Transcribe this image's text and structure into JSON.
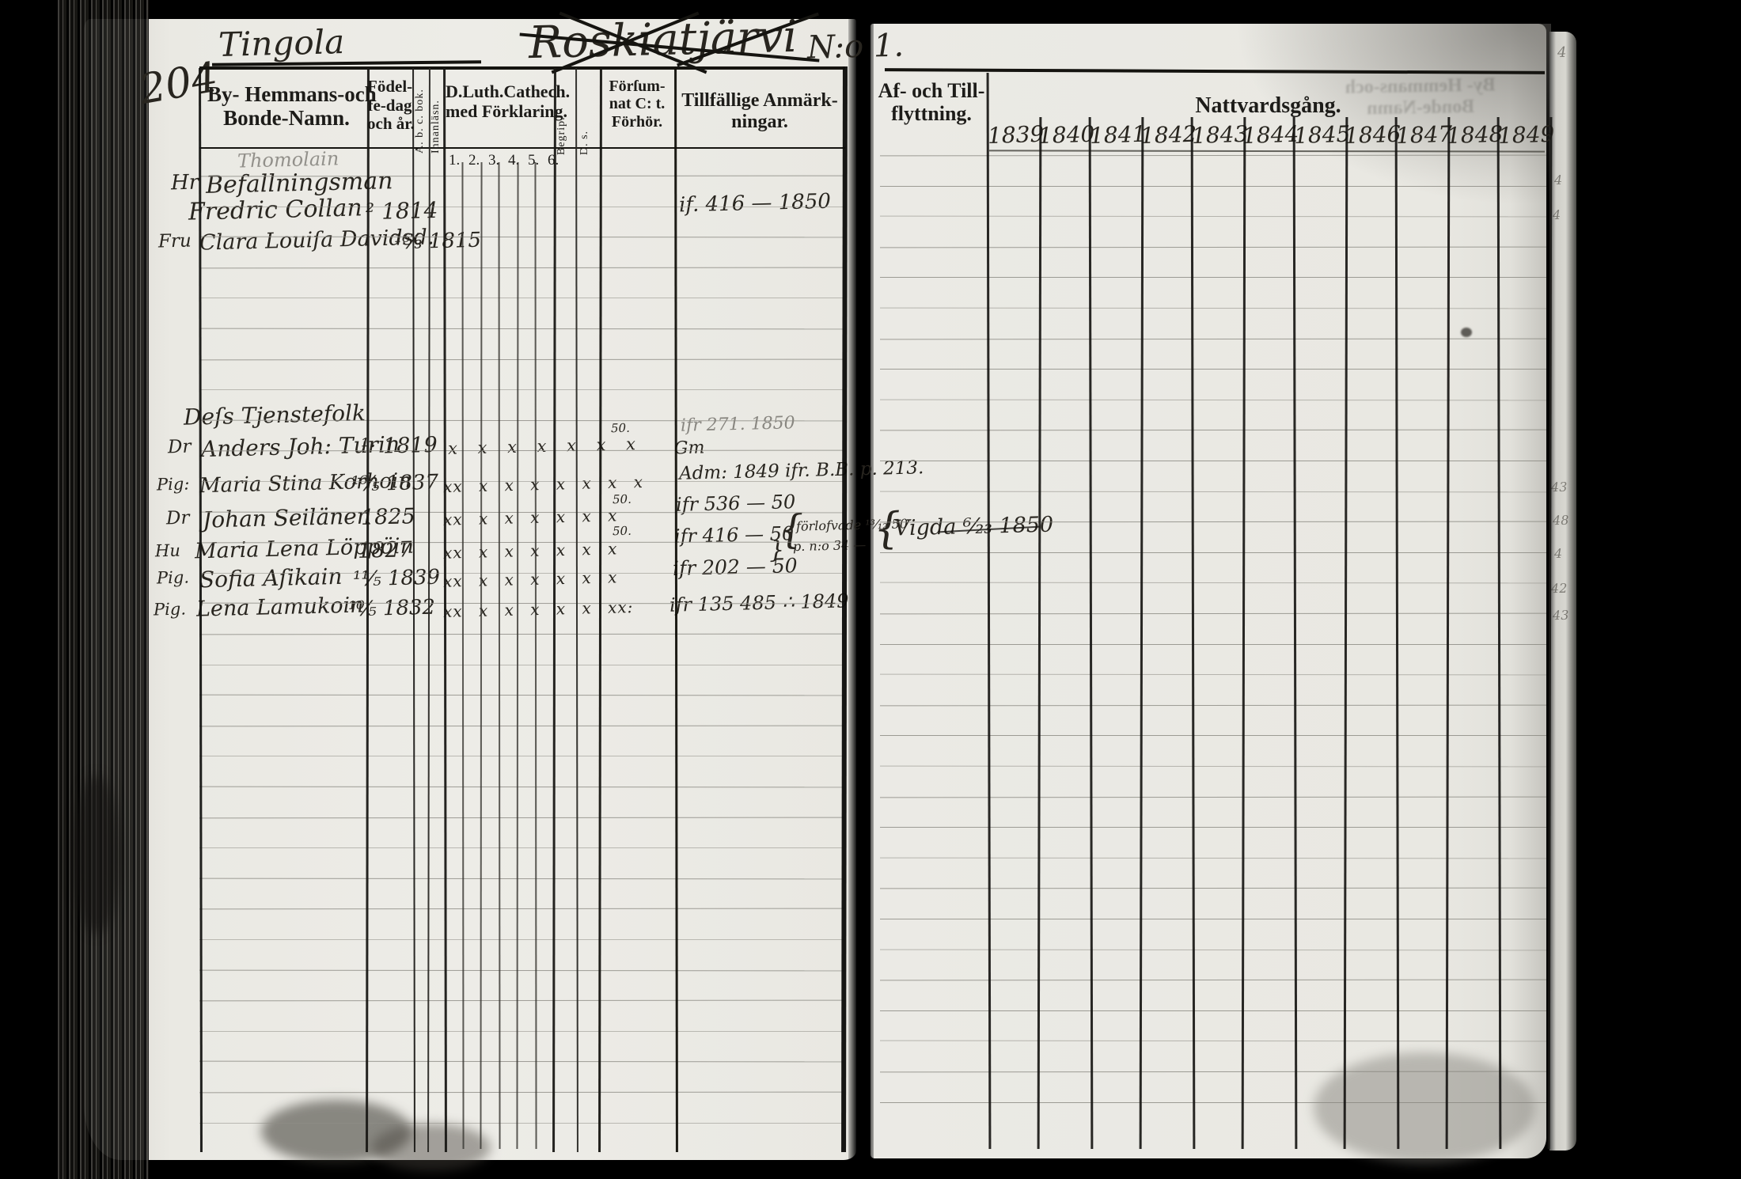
{
  "document": {
    "page_number": "204",
    "title": {
      "place": "Tingola",
      "struck": "Roskiatjärvi",
      "number": "N:o 1."
    },
    "left_table": {
      "headers": {
        "names_1": "By- Hemmans-och",
        "names_2": "Bonde-Namn.",
        "birth_1": "Födel-",
        "birth_2": "fe-dag",
        "birth_3": "och år.",
        "abc": "A. b. c. bok.",
        "reading": "Innanläsn.",
        "catechism_1": "D.Luth.Cathech.",
        "catechism_2": "med Förklaring.",
        "catechism_numbers": "1.  2.  3.  4.  5.  6.",
        "comprehension": "Begrip.",
        "ds": "D. s.",
        "missed_1": "Förſum-",
        "missed_2": "nat C: t.",
        "missed_3": "Förhör.",
        "remarks_1": "Tillfällige Anmärk-",
        "remarks_2": "ningar."
      },
      "entries": [
        {
          "prefix": "",
          "name": "Thomolain",
          "date": "",
          "marks": ""
        },
        {
          "prefix": "Hr",
          "name": "Befallningsman",
          "date": "",
          "marks": ""
        },
        {
          "prefix": "",
          "name": "Fredric Collan",
          "date": "² 1814",
          "marks": ""
        },
        {
          "prefix": "Fru",
          "name": "Clara Louiſa Davidsd.",
          "date": "¹⁶⁄₃ 1815",
          "marks": ""
        },
        {
          "prefix": "",
          "name": "Deſs Tjenstefolk",
          "date": "",
          "marks": ""
        },
        {
          "prefix": "Dr",
          "name": "Anders Joh: Turin",
          "date": "¹· 1819",
          "marks": "x x x x x x x"
        },
        {
          "prefix": "Pig:",
          "name": "Maria Stina Korhoin",
          "date": "¹⁶⁄₅ 1837",
          "marks": "xx x x x x x x x"
        },
        {
          "prefix": "Dr",
          "name": "Johan Seilänen",
          "date": "1825",
          "marks": "xx x x x x x x"
        },
        {
          "prefix": "Hu",
          "name": "Maria Lena Löppöin",
          "date": "1827",
          "marks": "xx x x x x x x"
        },
        {
          "prefix": "Pig.",
          "name": "Sofia Aſikain",
          "date": "¹¹⁄₅ 1839",
          "marks": "xx x x x x x x"
        },
        {
          "prefix": "Pig.",
          "name": "Lena Lamukoin",
          "date": "¹⁰⁄₅ 1832",
          "marks": "xx x x x x x xx:"
        }
      ],
      "missed_marks": [
        "50.",
        "50.",
        "50."
      ],
      "remarks": [
        {
          "text": "if. 416 —  1850"
        },
        {
          "text": "ifr 271.  1850"
        },
        {
          "text": "Gm"
        },
        {
          "text": "Adm: 1849 ifr. B.B. p. 213."
        },
        {
          "text": "ifr 536 — 50"
        },
        {
          "text": "ifr 416 — 50"
        },
        {
          "text": "{"
        },
        {
          "text": "förlofvade ¹³⁄₁₂ 50"
        },
        {
          "text": "p. n:o 34 —"
        },
        {
          "text": "}"
        },
        {
          "text": "ifr 202 — 50"
        },
        {
          "text": "ifr 135 485 ∴ 1849"
        }
      ]
    },
    "right_table": {
      "headers": {
        "moving_1": "Af- och Till-",
        "moving_2": "flyttning.",
        "communion": "Nattvardsgång."
      },
      "years": [
        "1839",
        "1840",
        "1841",
        "1842",
        "1843",
        "1844",
        "1845",
        "1846",
        "1847",
        "1848",
        "1849"
      ],
      "moving_note": {
        "brace": "{",
        "text": "Vigda ⁶⁄₂₃ 1850"
      }
    },
    "edge_marks": [
      "4",
      "4",
      "43",
      "48",
      "4",
      "42",
      "43"
    ],
    "corner_mark": "4",
    "bleedthrough_1": "By- Hemmans-och",
    "bleedthrough_2": "Bonde-Namn"
  },
  "colors": {
    "background": "#000000",
    "paper": "#eae9e3",
    "ink": "#1d1c19",
    "rule": "#92918a"
  }
}
